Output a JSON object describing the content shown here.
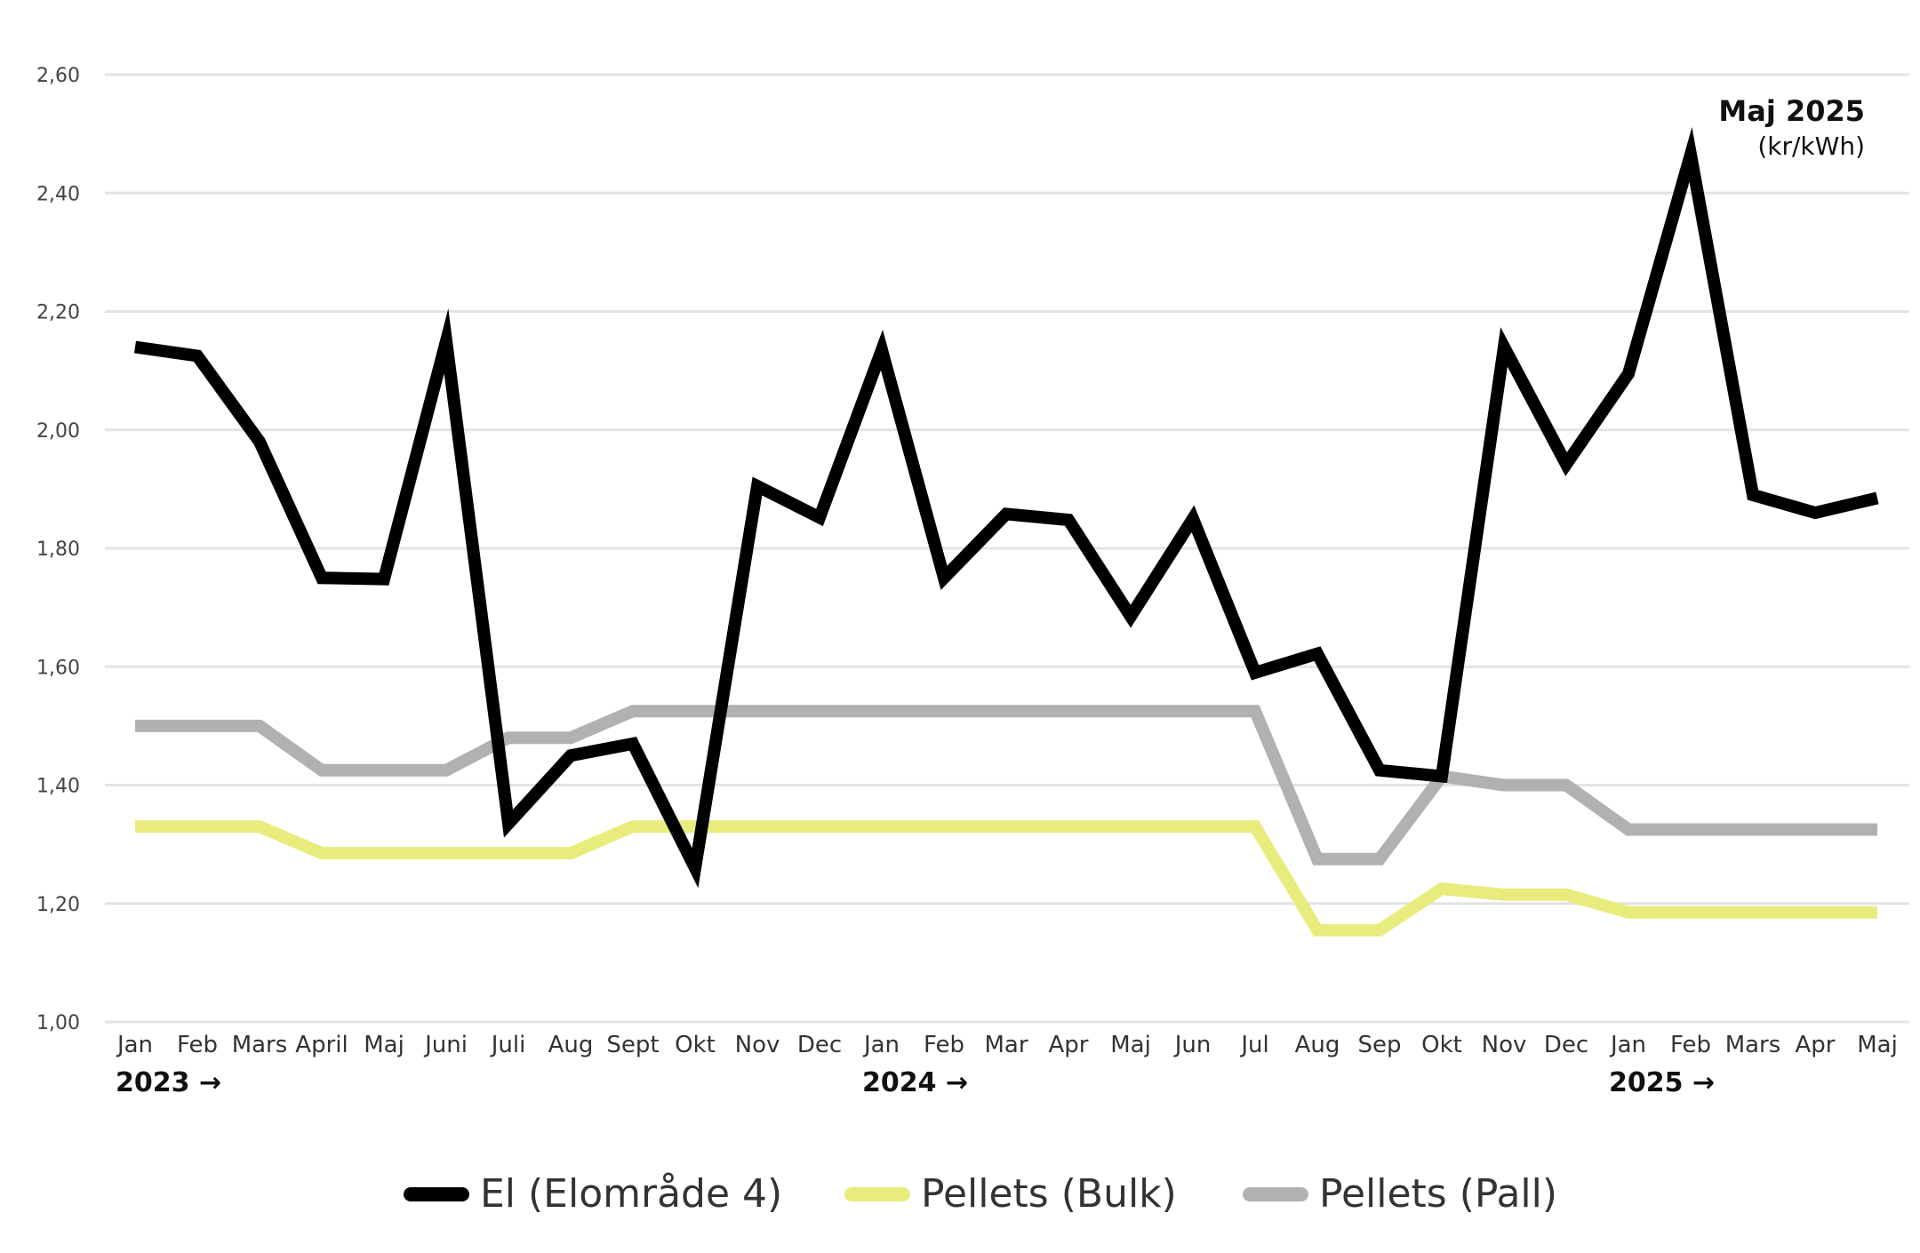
{
  "chart_data": {
    "type": "line",
    "unit_title": "Maj 2025",
    "unit": "(kr/kWh)",
    "ylim": [
      1.0,
      2.6
    ],
    "yticks": [
      "1,00",
      "1,20",
      "1,40",
      "1,60",
      "1,80",
      "2,00",
      "2,20",
      "2,40",
      "2,60"
    ],
    "categories": [
      "Jan",
      "Feb",
      "Mars",
      "April",
      "Maj",
      "Juni",
      "Juli",
      "Aug",
      "Sept",
      "Okt",
      "Nov",
      "Dec",
      "Jan",
      "Feb",
      "Mar",
      "Apr",
      "Maj",
      "Jun",
      "Jul",
      "Aug",
      "Sep",
      "Okt",
      "Nov",
      "Dec",
      "Jan",
      "Feb",
      "Mars",
      "Apr",
      "Maj"
    ],
    "year_labels": [
      {
        "label": "2023 →",
        "index": 0
      },
      {
        "label": "2024 →",
        "index": 12
      },
      {
        "label": "2025 →",
        "index": 24
      }
    ],
    "series": [
      {
        "name": "Pellets (Pall)",
        "color": "#b3b0b0",
        "values": [
          1.5,
          1.5,
          1.5,
          1.425,
          1.425,
          1.425,
          1.48,
          1.48,
          1.525,
          1.525,
          1.525,
          1.525,
          1.525,
          1.525,
          1.525,
          1.525,
          1.525,
          1.525,
          1.525,
          1.275,
          1.275,
          1.415,
          1.4,
          1.4,
          1.325,
          1.325,
          1.325,
          1.325,
          1.325
        ]
      },
      {
        "name": "Pellets (Bulk)",
        "color": "#e8ec7c",
        "values": [
          1.33,
          1.33,
          1.33,
          1.285,
          1.285,
          1.285,
          1.285,
          1.285,
          1.33,
          1.33,
          1.33,
          1.33,
          1.33,
          1.33,
          1.33,
          1.33,
          1.33,
          1.33,
          1.33,
          1.155,
          1.155,
          1.225,
          1.215,
          1.215,
          1.185,
          1.185,
          1.185,
          1.185,
          1.185
        ]
      },
      {
        "name": "El (Elområde 4)",
        "color": "#000000",
        "values": [
          2.14,
          2.125,
          1.98,
          1.75,
          1.748,
          2.15,
          1.335,
          1.45,
          1.47,
          1.26,
          1.905,
          1.852,
          2.135,
          1.75,
          1.858,
          1.848,
          1.685,
          1.85,
          1.59,
          1.622,
          1.425,
          1.415,
          2.14,
          1.942,
          2.095,
          2.465,
          1.89,
          1.86,
          1.885
        ]
      }
    ],
    "legend": [
      {
        "label": "El (Elområde 4)",
        "color": "#000000"
      },
      {
        "label": "Pellets (Bulk)",
        "color": "#e8ec7c"
      },
      {
        "label": "Pellets (Pall)",
        "color": "#b3b0b0"
      }
    ]
  }
}
